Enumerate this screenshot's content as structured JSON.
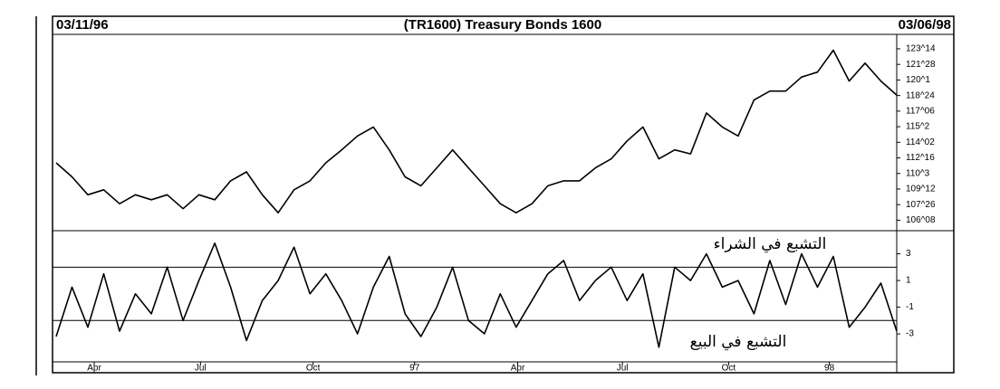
{
  "chart_data": [
    {
      "type": "line",
      "title": "(TR1600) Treasury Bonds 1600",
      "start_date": "03/11/96",
      "end_date": "03/06/98",
      "color": "#000000",
      "values": [
        112.0,
        110.6,
        108.8,
        109.3,
        107.9,
        108.8,
        108.3,
        108.8,
        107.4,
        108.8,
        108.3,
        110.2,
        111.1,
        108.8,
        107.0,
        109.3,
        110.2,
        112.0,
        113.3,
        114.7,
        115.6,
        113.3,
        110.6,
        109.7,
        111.5,
        113.3,
        111.5,
        109.7,
        107.9,
        107.0,
        107.9,
        109.7,
        110.2,
        110.2,
        111.5,
        112.4,
        114.2,
        115.6,
        112.4,
        113.3,
        112.9,
        117.0,
        115.6,
        114.7,
        118.3,
        119.2,
        119.2,
        120.6,
        121.1,
        123.3,
        120.2,
        122.0,
        120.2,
        118.8
      ],
      "xlim": [
        0,
        53
      ],
      "ylim": [
        105.2,
        124.25
      ],
      "yticks": [
        {
          "value": 106.25,
          "label": "106^08"
        },
        {
          "value": 107.8125,
          "label": "107^26"
        },
        {
          "value": 109.375,
          "label": "109^12"
        },
        {
          "value": 110.9375,
          "label": "110^3"
        },
        {
          "value": 112.5,
          "label": "112^16"
        },
        {
          "value": 114.0625,
          "label": "114^02"
        },
        {
          "value": 115.625,
          "label": "115^2"
        },
        {
          "value": 117.1875,
          "label": "117^06"
        },
        {
          "value": 118.75,
          "label": "118^24"
        },
        {
          "value": 120.3125,
          "label": "120^1"
        },
        {
          "value": 121.875,
          "label": "121^28"
        },
        {
          "value": 123.4375,
          "label": "123^14"
        }
      ]
    },
    {
      "type": "line",
      "color": "#000000",
      "values": [
        -3.2,
        0.5,
        -2.5,
        1.5,
        -2.8,
        0,
        -1.5,
        2,
        -2,
        1,
        3.8,
        0.5,
        -3.5,
        -0.5,
        1,
        3.5,
        0,
        1.5,
        -0.5,
        -3,
        0.5,
        2.8,
        -1.5,
        -3.2,
        -1,
        2,
        -2,
        -3,
        0,
        -2.5,
        -0.5,
        1.5,
        2.5,
        -0.5,
        1,
        2,
        -0.5,
        1.5,
        -4.0,
        2,
        1,
        3,
        0.5,
        1,
        -1.5,
        2.5,
        -0.8,
        3,
        0.5,
        2.8,
        -2.5,
        -1,
        0.8,
        -2.8
      ],
      "xlim": [
        0,
        53
      ],
      "ylim": [
        -5.1,
        4.6
      ],
      "yticks": [
        3,
        1,
        -1,
        -3
      ],
      "reference_lines": [
        2,
        -2
      ],
      "annotations": [
        "التشبع في الشراء",
        "التشبع في البيع"
      ],
      "xticks": [
        {
          "value": 2.4,
          "label": "Apr"
        },
        {
          "value": 9.1,
          "label": "Jul"
        },
        {
          "value": 16.2,
          "label": "Oct"
        },
        {
          "value": 22.6,
          "label": "97"
        },
        {
          "value": 29.1,
          "label": "Apr"
        },
        {
          "value": 35.7,
          "label": "Jul"
        },
        {
          "value": 42.4,
          "label": "Oct"
        },
        {
          "value": 48.75,
          "label": "98"
        }
      ]
    }
  ]
}
